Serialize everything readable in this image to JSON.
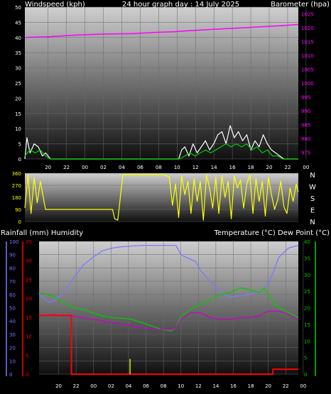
{
  "colors": {
    "background": "#000000",
    "wind_speed": "#ffffff",
    "wind_avg": "#00cc00",
    "barometer": "#ff00ff",
    "direction": "#ffff00",
    "rainfall": "#ff0000",
    "humidity": "#7a7aff",
    "temperature": "#00cc00",
    "dew_point": "#cc00cc",
    "rain_rate": "#ffff00"
  },
  "chart_data": [
    {
      "type": "line",
      "title": "24 hour graph day : 14 July 2025",
      "ylabel": "Windspeed (kph)",
      "y2label": "Barometer (hpa)",
      "x_ticks": [
        "20",
        "22",
        "00",
        "02",
        "04",
        "06",
        "08",
        "10",
        "12",
        "14",
        "16",
        "18",
        "20",
        "22",
        "00"
      ],
      "ylim": [
        0,
        50
      ],
      "yticks": [
        0,
        5,
        10,
        15,
        20,
        25,
        30,
        35,
        40,
        45,
        50
      ],
      "y2lim": [
        972.5,
        1027.5
      ],
      "y2ticks": [
        975,
        980,
        985,
        990,
        995,
        1000,
        1005,
        1010,
        1015,
        1020,
        1025
      ],
      "x_range_hours": [
        -26.5,
        0
      ],
      "series": [
        {
          "color_key": "barometer",
          "x": [
            -26.5,
            -24,
            -22,
            -20,
            -18,
            -16,
            -14,
            -12,
            -10,
            -8,
            -6,
            -4,
            -2,
            0
          ],
          "y": [
            1016.5,
            1016.8,
            1017.3,
            1017.6,
            1017.8,
            1017.9,
            1018.3,
            1018.6,
            1019.1,
            1019.5,
            1019.9,
            1020.3,
            1020.7,
            1021.2
          ]
        },
        {
          "color_key": "wind_speed",
          "x": [
            -26.5,
            -26.3,
            -26,
            -25.6,
            -25.2,
            -24.8,
            -24.5,
            -24,
            -16,
            -11.6,
            -11.3,
            -11,
            -10.6,
            -10.2,
            -9.8,
            -9.4,
            -9,
            -8.6,
            -8.2,
            -7.8,
            -7.4,
            -7,
            -6.6,
            -6.2,
            -5.8,
            -5.4,
            -5,
            -4.6,
            -4.2,
            -3.8,
            -3.4,
            -3,
            -2.6,
            -2.2,
            -1.8,
            -1.4,
            -1,
            -0.6,
            0
          ],
          "y": [
            0,
            7,
            2,
            5,
            4,
            1,
            2,
            0,
            0,
            0,
            3,
            4,
            1,
            5,
            2,
            4,
            6,
            3,
            5,
            8,
            9,
            5,
            11,
            7,
            9,
            6,
            8,
            3,
            6,
            4,
            8,
            5,
            3,
            2,
            1,
            0,
            0,
            0,
            0
          ]
        },
        {
          "color_key": "wind_avg",
          "x": [
            -26.5,
            -26,
            -25.5,
            -25,
            -24.5,
            -24,
            -16,
            -11.5,
            -11,
            -10.5,
            -10,
            -9.5,
            -9,
            -8.5,
            -8,
            -7.5,
            -7,
            -6.5,
            -6,
            -5.5,
            -5,
            -4.5,
            -4,
            -3.5,
            -3,
            -2.5,
            -2,
            -1.5,
            -1,
            0
          ],
          "y": [
            1,
            3,
            2,
            3,
            1,
            0,
            0,
            0,
            1,
            2,
            1,
            2,
            3,
            2,
            3,
            4,
            5,
            4,
            5,
            4,
            5,
            3,
            4,
            2,
            3,
            1,
            1,
            0,
            0,
            0
          ]
        }
      ]
    },
    {
      "type": "line",
      "title": "",
      "ylabel": "",
      "ylim": [
        0,
        360
      ],
      "yticks": [
        0,
        90,
        180,
        270,
        360
      ],
      "y2ticks": [
        "N",
        "W",
        "S",
        "E",
        "N"
      ],
      "x_range_hours": [
        -26.5,
        0
      ],
      "series": [
        {
          "color_key": "direction",
          "x": [
            -26.5,
            -26.2,
            -25.9,
            -25.6,
            -25.3,
            -25,
            -24.5,
            -24,
            -22,
            -20,
            -18,
            -17.8,
            -17.5,
            -17,
            -16.5,
            -15,
            -13,
            -12.5,
            -12.2,
            -11.9,
            -11.6,
            -11.3,
            -11,
            -10.7,
            -10.4,
            -10.1,
            -9.8,
            -9.5,
            -9.2,
            -8.9,
            -8.6,
            -8.3,
            -8,
            -7.7,
            -7.4,
            -7.1,
            -6.8,
            -6.5,
            -6.2,
            -5.9,
            -5.6,
            -5.3,
            -5,
            -4.7,
            -4.4,
            -4.1,
            -3.8,
            -3.5,
            -3.2,
            -2.9,
            -2.6,
            -2.3,
            -2,
            -1.7,
            -1.4,
            -1.1,
            -0.8,
            -0.5,
            -0.2,
            0
          ],
          "y": [
            100,
            350,
            60,
            330,
            140,
            300,
            90,
            90,
            90,
            90,
            90,
            20,
            10,
            350,
            350,
            350,
            350,
            330,
            120,
            280,
            30,
            340,
            200,
            300,
            60,
            320,
            150,
            300,
            10,
            350,
            250,
            100,
            330,
            60,
            340,
            180,
            300,
            20,
            340,
            250,
            310,
            100,
            280,
            350,
            60,
            320,
            150,
            300,
            40,
            330,
            200,
            90,
            160,
            300,
            110,
            60,
            250,
            150,
            280,
            220
          ]
        }
      ]
    },
    {
      "type": "line",
      "title": "",
      "ylabel": "Rainfall (mm)  Humidity",
      "y2label": "Temperature (°C) Dew Point (°C)",
      "ylim": [
        0,
        100
      ],
      "yticks": [
        0,
        10,
        20,
        30,
        40,
        50,
        60,
        70,
        80,
        90,
        100
      ],
      "y_rain_lim": [
        0,
        35
      ],
      "y_rain_ticks": [
        0,
        5,
        10,
        15,
        20,
        25,
        30,
        35
      ],
      "y2lim": [
        0,
        40
      ],
      "y2ticks": [
        0,
        5,
        10,
        15,
        20,
        25,
        30,
        35,
        40
      ],
      "x_ticks": [
        "20",
        "22",
        "00",
        "02",
        "04",
        "06",
        "08",
        "10",
        "12",
        "14",
        "16",
        "18",
        "20",
        "22",
        "00"
      ],
      "x_range_hours": [
        -26.5,
        0
      ],
      "series": [
        {
          "color_key": "humidity",
          "x": [
            -26.5,
            -25.5,
            -25,
            -24,
            -23,
            -22,
            -21,
            -20,
            -19,
            -18,
            -16,
            -14,
            -12.5,
            -12,
            -11.5,
            -10.5,
            -10,
            -9,
            -8,
            -7,
            -6,
            -5,
            -4,
            -3,
            -2.5,
            -2,
            -1,
            0
          ],
          "y": [
            60,
            54,
            55,
            61,
            72,
            82,
            88,
            93,
            95,
            96,
            97,
            97,
            97,
            90,
            88,
            85,
            78,
            70,
            62,
            58,
            59,
            60,
            61,
            69,
            78,
            88,
            95,
            97
          ]
        },
        {
          "color_key": "temperature",
          "x": [
            -26.5,
            -25,
            -24,
            -23,
            -22,
            -21,
            -20,
            -19,
            -18,
            -17,
            -16,
            -15,
            -14,
            -13,
            -12.5,
            -12,
            -11,
            -10,
            -9,
            -8,
            -7,
            -6,
            -5,
            -4,
            -3.5,
            -3,
            -2.5,
            -2,
            -1,
            0
          ],
          "y": [
            24.5,
            23.5,
            21.5,
            20,
            19.5,
            18.5,
            17.5,
            17,
            16.8,
            16.5,
            15.5,
            14.5,
            13.5,
            13,
            14,
            17.5,
            19.5,
            21,
            22.5,
            24,
            24.5,
            26,
            25.5,
            24.5,
            26,
            24,
            21.5,
            20,
            18.5,
            17
          ]
        },
        {
          "color_key": "dew_point",
          "x": [
            -26.5,
            -25,
            -24,
            -23,
            -22,
            -21,
            -20,
            -19,
            -18,
            -17,
            -16,
            -15,
            -14,
            -13,
            -12.5,
            -12,
            -11,
            -10,
            -9,
            -8,
            -7,
            -6,
            -5,
            -4,
            -3.5,
            -3,
            -2,
            -1,
            0
          ],
          "y": [
            17.5,
            18,
            17.5,
            17.5,
            17,
            16.5,
            16,
            15.5,
            15,
            14.5,
            14,
            13.5,
            13.5,
            13.3,
            14,
            16.5,
            18.5,
            18.5,
            17,
            16.5,
            16.5,
            17,
            17,
            17.5,
            18.5,
            19,
            19,
            18,
            16.5
          ]
        },
        {
          "color_key": "rainfall",
          "x": [
            -26.5,
            -23.2,
            -23.2,
            -2.6,
            -2.6,
            0
          ],
          "y": [
            15.5,
            15.5,
            0,
            0,
            1.3,
            1.3
          ]
        },
        {
          "color_key": "rain_rate",
          "x": [
            -17.2,
            -17.2
          ],
          "y": [
            0,
            4
          ]
        }
      ]
    }
  ]
}
